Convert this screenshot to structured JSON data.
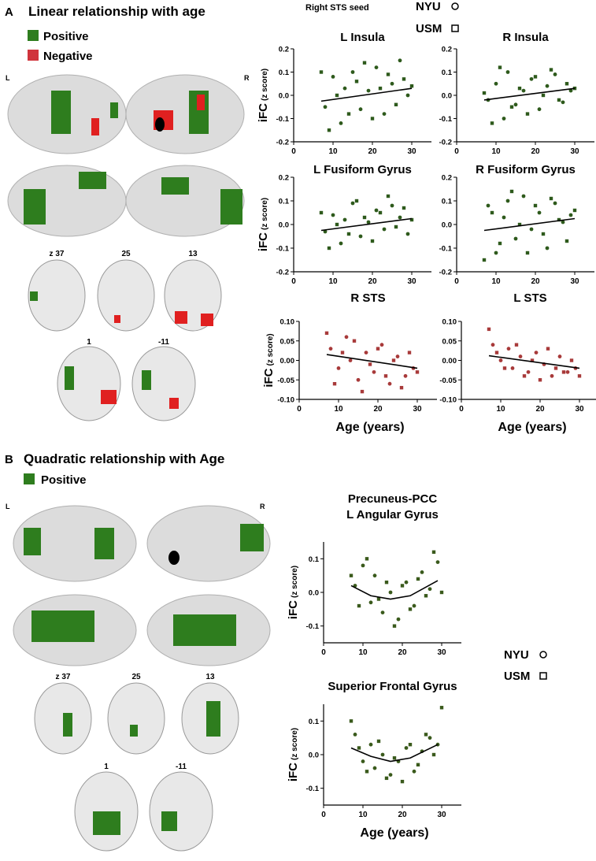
{
  "panels": {
    "a": {
      "label": "A",
      "title": "Linear relationship with age",
      "positive": "Positive",
      "negative": "Negative",
      "left": "L",
      "right": "R",
      "slices": [
        "z 37",
        "25",
        "13",
        "1",
        "-11"
      ],
      "seed": "Right STS seed",
      "legend": [
        "NYU",
        "USM"
      ]
    },
    "b": {
      "label": "B",
      "title": "Quadratic relationship with Age",
      "positive": "Positive",
      "left": "L",
      "right": "R",
      "slices": [
        "z 37",
        "25",
        "13",
        "1",
        "-11"
      ],
      "legend": [
        "NYU",
        "USM"
      ]
    }
  },
  "chart_data": [
    {
      "type": "scatter",
      "title": "L Insula",
      "ylabel": "iFC",
      "ylabel_sub": "(z score)",
      "xlim": [
        0,
        35
      ],
      "xticks": [
        0,
        10,
        20,
        30
      ],
      "ylim": [
        -0.2,
        0.2
      ],
      "yticks": [
        -0.2,
        -0.1,
        {
          "value": 0,
          "label": "0.0"
        },
        0.1,
        0.2
      ],
      "series": [
        {
          "marker": "circle",
          "color": "#2e5a1c",
          "x": [
            8,
            10,
            12,
            13,
            15,
            17,
            19,
            21,
            23,
            25,
            27,
            29
          ],
          "values": [
            -0.05,
            0.08,
            -0.12,
            0.03,
            0.1,
            -0.06,
            0.02,
            0.12,
            -0.08,
            0.05,
            0.15,
            0.0
          ]
        },
        {
          "marker": "square",
          "color": "#2e5a1c",
          "x": [
            7,
            9,
            11,
            14,
            16,
            18,
            20,
            22,
            24,
            26,
            28,
            30
          ],
          "values": [
            0.1,
            -0.15,
            0.0,
            -0.08,
            0.06,
            0.14,
            -0.1,
            0.03,
            0.09,
            -0.04,
            0.07,
            0.04
          ]
        }
      ],
      "trend": {
        "x": [
          7,
          30
        ],
        "values": [
          -0.025,
          0.03
        ]
      }
    },
    {
      "type": "scatter",
      "title": "R Insula",
      "xlim": [
        0,
        35
      ],
      "xticks": [
        0,
        10,
        20,
        30
      ],
      "ylim": [
        -0.2,
        0.2
      ],
      "yticks": [
        -0.2,
        -0.1,
        {
          "value": 0,
          "label": "0.0"
        },
        0.1,
        0.2
      ],
      "series": [
        {
          "marker": "circle",
          "color": "#2e5a1c",
          "x": [
            8,
            10,
            12,
            13,
            15,
            17,
            19,
            21,
            23,
            25,
            27,
            29
          ],
          "values": [
            -0.02,
            0.05,
            -0.1,
            0.1,
            -0.04,
            0.02,
            0.07,
            -0.06,
            0.04,
            0.09,
            -0.03,
            0.02
          ]
        },
        {
          "marker": "square",
          "color": "#2e5a1c",
          "x": [
            7,
            9,
            11,
            14,
            16,
            18,
            20,
            22,
            24,
            26,
            28,
            30
          ],
          "values": [
            0.01,
            -0.12,
            0.12,
            -0.05,
            0.03,
            -0.08,
            0.08,
            0.0,
            0.11,
            -0.02,
            0.05,
            0.03
          ]
        }
      ],
      "trend": {
        "x": [
          7,
          30
        ],
        "values": [
          -0.02,
          0.03
        ]
      }
    },
    {
      "type": "scatter",
      "title": "L Fusiform Gyrus",
      "ylabel": "iFC",
      "ylabel_sub": "(z score)",
      "xlim": [
        0,
        35
      ],
      "xticks": [
        0,
        10,
        20,
        30
      ],
      "ylim": [
        -0.2,
        0.2
      ],
      "yticks": [
        -0.2,
        -0.1,
        {
          "value": 0,
          "label": "0.0"
        },
        0.1,
        0.2
      ],
      "series": [
        {
          "marker": "circle",
          "color": "#2e5a1c",
          "x": [
            8,
            10,
            12,
            13,
            15,
            17,
            19,
            21,
            23,
            25,
            27,
            29
          ],
          "values": [
            -0.03,
            0.04,
            -0.08,
            0.02,
            0.09,
            -0.05,
            0.01,
            0.06,
            -0.02,
            0.08,
            0.03,
            -0.04
          ]
        },
        {
          "marker": "square",
          "color": "#2e5a1c",
          "x": [
            7,
            9,
            11,
            14,
            16,
            18,
            20,
            22,
            24,
            26,
            28,
            30
          ],
          "values": [
            0.05,
            -0.1,
            0.0,
            -0.04,
            0.1,
            0.03,
            -0.07,
            0.05,
            0.12,
            -0.01,
            0.07,
            0.02
          ]
        }
      ],
      "trend": {
        "x": [
          7,
          30
        ],
        "values": [
          -0.025,
          0.025
        ]
      }
    },
    {
      "type": "scatter",
      "title": "R Fusiform Gyrus",
      "xlim": [
        0,
        35
      ],
      "xticks": [
        0,
        10,
        20,
        30
      ],
      "ylim": [
        -0.2,
        0.2
      ],
      "yticks": [
        -0.2,
        -0.1,
        {
          "value": 0,
          "label": "0.0"
        },
        0.1,
        0.2
      ],
      "series": [
        {
          "marker": "circle",
          "color": "#2e5a1c",
          "x": [
            8,
            10,
            12,
            13,
            15,
            17,
            19,
            21,
            23,
            25,
            27,
            29
          ],
          "values": [
            0.08,
            -0.12,
            0.03,
            0.1,
            -0.06,
            0.12,
            -0.02,
            0.05,
            -0.1,
            0.09,
            0.01,
            0.04
          ]
        },
        {
          "marker": "square",
          "color": "#2e5a1c",
          "x": [
            7,
            9,
            11,
            14,
            16,
            18,
            20,
            22,
            24,
            26,
            28,
            30
          ],
          "values": [
            -0.15,
            0.05,
            -0.08,
            0.14,
            0.0,
            -0.12,
            0.08,
            -0.04,
            0.11,
            0.02,
            -0.07,
            0.06
          ]
        }
      ],
      "trend": {
        "x": [
          7,
          30
        ],
        "values": [
          -0.025,
          0.025
        ]
      }
    },
    {
      "type": "scatter",
      "title": "R STS",
      "ylabel": "iFC",
      "ylabel_sub": "(z score)",
      "xlabel": "Age (years)",
      "xlim": [
        0,
        35
      ],
      "xticks": [
        0,
        10,
        20,
        30
      ],
      "ylim": [
        -0.1,
        0.1
      ],
      "yticks": [
        {
          "value": -0.1,
          "label": "-0.10"
        },
        -0.05,
        {
          "value": 0,
          "label": "0.00"
        },
        0.05,
        {
          "value": 0.1,
          "label": "0.10"
        }
      ],
      "series": [
        {
          "marker": "circle",
          "color": "#a83a3a",
          "x": [
            8,
            10,
            12,
            13,
            15,
            17,
            19,
            21,
            23,
            25,
            27,
            29
          ],
          "values": [
            0.03,
            -0.02,
            0.06,
            0.0,
            -0.05,
            0.02,
            -0.03,
            0.04,
            -0.06,
            0.01,
            -0.04,
            -0.02
          ]
        },
        {
          "marker": "square",
          "color": "#a83a3a",
          "x": [
            7,
            9,
            11,
            14,
            16,
            18,
            20,
            22,
            24,
            26,
            28,
            30
          ],
          "values": [
            0.07,
            -0.06,
            0.02,
            0.05,
            -0.08,
            -0.01,
            0.03,
            -0.04,
            0.0,
            -0.07,
            0.02,
            -0.03
          ]
        }
      ],
      "trend": {
        "x": [
          7,
          30
        ],
        "values": [
          0.015,
          -0.02
        ]
      }
    },
    {
      "type": "scatter",
      "title": "L STS",
      "xlabel": "Age (years)",
      "xlim": [
        0,
        35
      ],
      "xticks": [
        0,
        10,
        20,
        30
      ],
      "ylim": [
        -0.1,
        0.1
      ],
      "yticks": [
        {
          "value": -0.1,
          "label": "-0.10"
        },
        -0.05,
        {
          "value": 0,
          "label": "0.00"
        },
        0.05,
        {
          "value": 0.1,
          "label": "0.10"
        }
      ],
      "series": [
        {
          "marker": "circle",
          "color": "#a83a3a",
          "x": [
            8,
            10,
            12,
            13,
            15,
            17,
            19,
            21,
            23,
            25,
            27,
            29
          ],
          "values": [
            0.04,
            0.0,
            0.03,
            -0.02,
            0.01,
            -0.03,
            0.02,
            -0.01,
            -0.04,
            0.01,
            -0.03,
            -0.02
          ]
        },
        {
          "marker": "square",
          "color": "#a83a3a",
          "x": [
            7,
            9,
            11,
            14,
            16,
            18,
            20,
            22,
            24,
            26,
            28,
            30
          ],
          "values": [
            0.08,
            0.02,
            -0.02,
            0.04,
            -0.04,
            0.0,
            -0.05,
            0.03,
            -0.02,
            -0.03,
            0.0,
            -0.04
          ]
        }
      ],
      "trend": {
        "x": [
          7,
          30
        ],
        "values": [
          0.012,
          -0.02
        ]
      }
    },
    {
      "type": "scatter",
      "title": [
        "Precuneus-PCC",
        "L Angular Gyrus"
      ],
      "ylabel": "iFC",
      "ylabel_sub": "(z score)",
      "xlim": [
        0,
        35
      ],
      "xticks": [
        0,
        10,
        20,
        30
      ],
      "ylim": [
        -0.15,
        0.15
      ],
      "yticks": [
        -0.1,
        {
          "value": 0,
          "label": "0.0"
        },
        0.1
      ],
      "series": [
        {
          "marker": "circle",
          "color": "#3a5a1c",
          "x": [
            8,
            10,
            12,
            13,
            15,
            17,
            19,
            21,
            23,
            25,
            27,
            29
          ],
          "values": [
            0.02,
            0.08,
            -0.03,
            0.05,
            -0.06,
            0.0,
            -0.08,
            0.03,
            -0.04,
            0.06,
            0.01,
            0.09
          ]
        },
        {
          "marker": "square",
          "color": "#3a5a1c",
          "x": [
            7,
            9,
            11,
            14,
            16,
            18,
            20,
            22,
            24,
            26,
            28,
            30
          ],
          "values": [
            0.05,
            -0.04,
            0.1,
            -0.02,
            0.03,
            -0.1,
            0.02,
            -0.05,
            0.04,
            -0.01,
            0.12,
            0.0
          ]
        }
      ],
      "trend": {
        "x": [
          7,
          12,
          17,
          22,
          29
        ],
        "values": [
          0.02,
          -0.01,
          -0.02,
          -0.01,
          0.035
        ]
      }
    },
    {
      "type": "scatter",
      "title": "Superior  Frontal Gyrus",
      "ylabel": "iFC",
      "ylabel_sub": "(z score)",
      "xlabel": "Age (years)",
      "xlim": [
        0,
        35
      ],
      "xticks": [
        0,
        10,
        20,
        30
      ],
      "ylim": [
        -0.15,
        0.15
      ],
      "yticks": [
        -0.1,
        {
          "value": 0,
          "label": "0.0"
        },
        0.1
      ],
      "series": [
        {
          "marker": "circle",
          "color": "#3a5a1c",
          "x": [
            8,
            10,
            12,
            13,
            15,
            17,
            19,
            21,
            23,
            25,
            27,
            29
          ],
          "values": [
            0.06,
            -0.02,
            0.03,
            -0.04,
            0.0,
            -0.06,
            -0.02,
            0.02,
            -0.05,
            0.01,
            0.05,
            0.03
          ]
        },
        {
          "marker": "square",
          "color": "#3a5a1c",
          "x": [
            7,
            9,
            11,
            14,
            16,
            18,
            20,
            22,
            24,
            26,
            28,
            30
          ],
          "values": [
            0.1,
            0.02,
            -0.05,
            0.04,
            -0.07,
            -0.01,
            -0.08,
            0.03,
            -0.03,
            0.06,
            0.0,
            0.14
          ]
        }
      ],
      "trend": {
        "x": [
          7,
          12,
          17,
          22,
          29
        ],
        "values": [
          0.02,
          -0.005,
          -0.02,
          -0.01,
          0.03
        ]
      }
    }
  ]
}
